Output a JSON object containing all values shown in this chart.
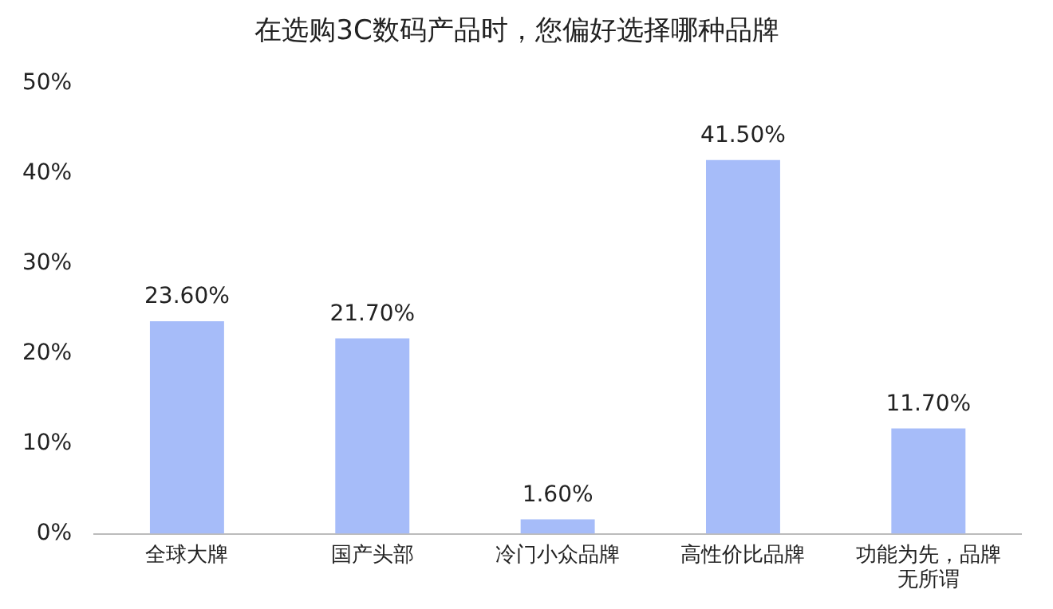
{
  "chart_data": {
    "type": "bar",
    "title": "在选购3C数码产品时，您偏好选择哪种品牌",
    "categories": [
      "全球大牌",
      "国产头部",
      "冷门小众品牌",
      "高性价比品牌",
      "功能为先，品牌无所谓"
    ],
    "values": [
      23.6,
      21.7,
      1.6,
      41.5,
      11.7
    ],
    "value_labels": [
      "23.60%",
      "21.70%",
      "1.60%",
      "41.50%",
      "11.70%"
    ],
    "color": "#a6bcf9",
    "ylim": [
      0,
      50
    ],
    "yticks": [
      {
        "value": 0,
        "label": "0%"
      },
      {
        "value": 10,
        "label": "10%"
      },
      {
        "value": 20,
        "label": "20%"
      },
      {
        "value": 30,
        "label": "30%"
      },
      {
        "value": 40,
        "label": "40%"
      },
      {
        "value": 50,
        "label": "50%"
      }
    ],
    "grid": false,
    "legend": false
  }
}
